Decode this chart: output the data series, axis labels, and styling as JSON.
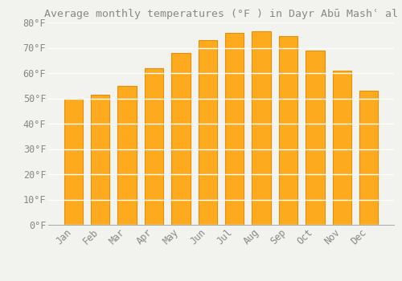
{
  "title": "Average monthly temperatures (°F ) in Dayr Abū Mashʿ al",
  "months": [
    "Jan",
    "Feb",
    "Mar",
    "Apr",
    "May",
    "Jun",
    "Jul",
    "Aug",
    "Sep",
    "Oct",
    "Nov",
    "Dec"
  ],
  "values": [
    50,
    51.5,
    55,
    62,
    68,
    73,
    76,
    76.5,
    74.5,
    69,
    61,
    53
  ],
  "bar_color": "#FDAA1E",
  "bar_edge_color": "#E89000",
  "background_color": "#F2F2EE",
  "grid_color": "#FFFFFF",
  "ylim": [
    0,
    80
  ],
  "yticks": [
    0,
    10,
    20,
    30,
    40,
    50,
    60,
    70,
    80
  ],
  "title_fontsize": 9.5,
  "tick_fontsize": 8.5,
  "font_color": "#888888"
}
